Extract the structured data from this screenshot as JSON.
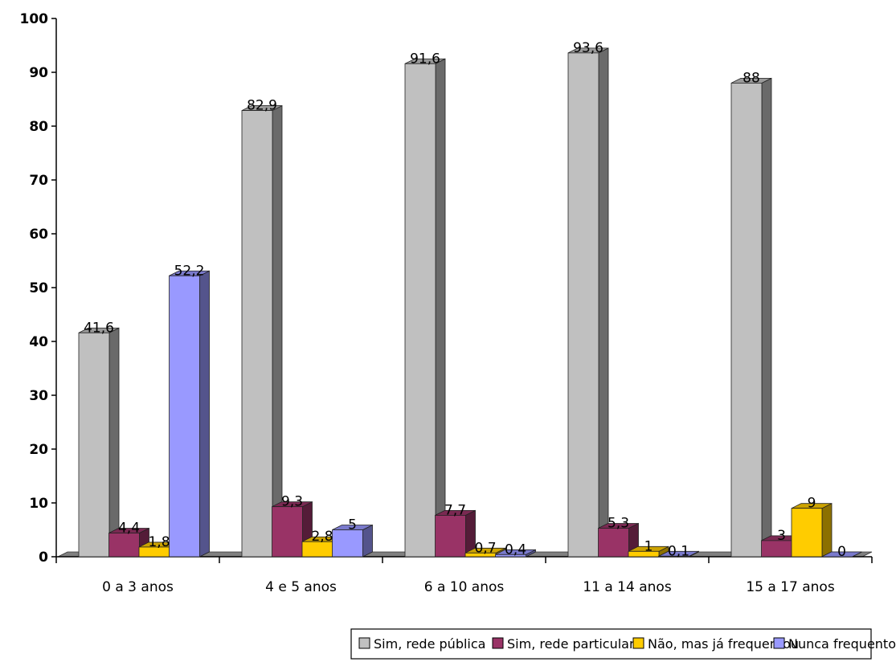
{
  "chart_data": {
    "type": "bar",
    "categories": [
      "0 a 3 anos",
      "4 e 5 anos",
      "6 a 10 anos",
      "11 a 14 anos",
      "15 a 17 anos"
    ],
    "series": [
      {
        "name": "Sim, rede pública",
        "values": [
          41.6,
          82.9,
          91.6,
          93.6,
          88
        ],
        "labels": [
          "41,6",
          "82,9",
          "91,6",
          "93,6",
          "88"
        ],
        "color": "#c0c0c0"
      },
      {
        "name": "Sim, rede particular",
        "values": [
          4.4,
          9.3,
          7.7,
          5.3,
          3
        ],
        "labels": [
          "4,4",
          "9,3",
          "7,7",
          "5,3",
          "3"
        ],
        "color": "#993366"
      },
      {
        "name": "Não, mas já frequentou",
        "values": [
          1.8,
          2.8,
          0.7,
          1,
          9
        ],
        "labels": [
          "1,8",
          "2,8",
          "0,7",
          "1",
          "9"
        ],
        "color": "#ffcc00"
      },
      {
        "name": "Nunca frequentou",
        "values": [
          52.2,
          5,
          0.4,
          0.1,
          0
        ],
        "labels": [
          "52,2",
          "5",
          "0,4",
          "0,1",
          "0"
        ],
        "color": "#9999ff"
      }
    ],
    "ylim": [
      0,
      100
    ],
    "yticks": [
      "0",
      "10",
      "20",
      "30",
      "40",
      "50",
      "60",
      "70",
      "80",
      "90",
      "100"
    ],
    "grid": false,
    "legend_position": "bottom",
    "style": "3d-clustered-column"
  }
}
